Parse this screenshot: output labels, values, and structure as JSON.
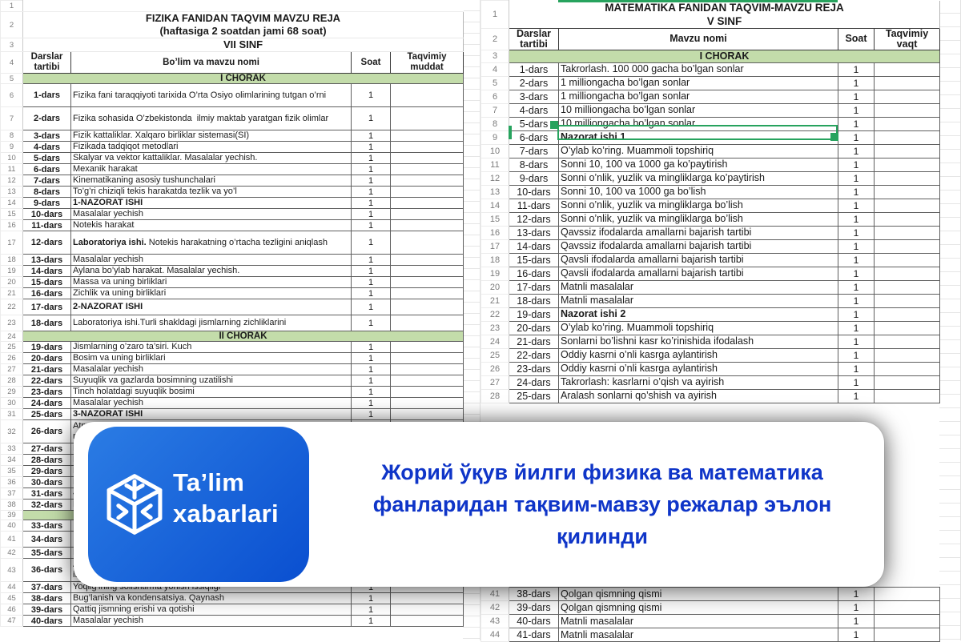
{
  "colors": {
    "section_green": "#c3dcaa",
    "selection_green": "#27a35e",
    "headline_blue": "#0f35c8",
    "logo_blue_from": "#2b7ce4",
    "logo_blue_to": "#0a4fd0"
  },
  "banner": {
    "headline": "Жорий ўқув йилги физика ва математика фанларидан тақвим-мавзу режалар эълон қилинди",
    "logo": {
      "line1": "Ta’lim",
      "line2": "xabarlari"
    }
  },
  "left_sheet": {
    "num1": "1",
    "num2": "2",
    "num3": "3",
    "num4": "4",
    "title_line1": "FIZIKA FANIDAN TAQVIM MAVZU REJA",
    "title_line2": "(haftasiga 2 soatdan jami 68 soat)",
    "subtitle": "VII SINF",
    "headers": [
      "Darslar tartibi",
      "Bo’lim va mavzu nomi",
      "Soat",
      "Taqvimiy muddat"
    ],
    "rows": [
      {
        "n": "5",
        "type": "section",
        "label": "I CHORAK"
      },
      {
        "n": "6",
        "dars": "1-dars",
        "mavzu": "Fizika fani taraqqiyoti tarixida O’rta Osiyo olimlarining tutgan o’rni",
        "soat": "1",
        "size": "l"
      },
      {
        "n": "7",
        "dars": "2-dars",
        "mavzu": "Fizika sohasida O’zbekistonda  ilmiy maktab yaratgan fizik olimlar",
        "soat": "1",
        "size": "l"
      },
      {
        "n": "8",
        "dars": "3-dars",
        "mavzu": "Fizik kattaliklar. Xalqaro birliklar sistemasi(SI)",
        "soat": "1"
      },
      {
        "n": "9",
        "dars": "4-dars",
        "mavzu": "Fizikada tadqiqot metodlari",
        "soat": "1"
      },
      {
        "n": "10",
        "dars": "5-dars",
        "mavzu": "Skalyar va vektor kattaliklar. Masalalar yechish.",
        "soat": "1"
      },
      {
        "n": "11",
        "dars": "6-dars",
        "mavzu": "Mexanik harakat",
        "soat": "1"
      },
      {
        "n": "12",
        "dars": "7-dars",
        "mavzu": "Kinematikaning asosiy tushunchalari",
        "soat": "1"
      },
      {
        "n": "13",
        "dars": "8-dars",
        "mavzu": "To’g’ri chiziqli tekis harakatda tezlik va yo’l",
        "soat": "1"
      },
      {
        "n": "14",
        "dars": "9-dars",
        "mavzu": "1-NAZORAT ISHI",
        "soat": "1",
        "bold": true
      },
      {
        "n": "15",
        "dars": "10-dars",
        "mavzu": "Masalalar yechish",
        "soat": "1"
      },
      {
        "n": "16",
        "dars": "11-dars",
        "mavzu": "Notekis harakat",
        "soat": "1"
      },
      {
        "n": "17",
        "dars": "12-dars",
        "parts": [
          {
            "t": "Laboratoriya ishi.",
            "b": true
          },
          {
            "t": " Notekis harakatning o’rtacha tezligini aniqlash"
          }
        ],
        "soat": "1",
        "size": "l"
      },
      {
        "n": "18",
        "dars": "13-dars",
        "mavzu": "Masalalar yechish",
        "soat": "1"
      },
      {
        "n": "19",
        "dars": "14-dars",
        "mavzu": "Aylana bo’ylab harakat. Masalalar yechish.",
        "soat": "1"
      },
      {
        "n": "20",
        "dars": "15-dars",
        "mavzu": "Massa va uning birliklari",
        "soat": "1"
      },
      {
        "n": "21",
        "dars": "16-dars",
        "mavzu": "Zichlik va uning birliklari",
        "soat": "1"
      },
      {
        "n": "22",
        "dars": "17-dars",
        "mavzu": "2-NAZORAT ISHI",
        "soat": "1",
        "bold": true,
        "size": "m"
      },
      {
        "n": "23",
        "dars": "18-dars",
        "mavzu": "Laboratoriya ishi.Turli shakldagi jismlarning zichliklarini",
        "soat": "1",
        "size": "m"
      },
      {
        "n": "24",
        "type": "section",
        "label": "II CHORAK"
      },
      {
        "n": "25",
        "dars": "19-dars",
        "mavzu": "Jismlarning o’zaro ta’siri. Kuch",
        "soat": "1"
      },
      {
        "n": "26",
        "dars": "20-dars",
        "mavzu": "Bosim va uning birliklari",
        "soat": "1"
      },
      {
        "n": "27",
        "dars": "21-dars",
        "mavzu": "Masalalar yechish",
        "soat": "1"
      },
      {
        "n": "28",
        "dars": "22-dars",
        "mavzu": "Suyuqlik va gazlarda bosimning uzatilishi",
        "soat": "1"
      },
      {
        "n": "29",
        "dars": "23-dars",
        "mavzu": "Tinch holatdagi suyuqlik bosimi",
        "soat": "1"
      },
      {
        "n": "30",
        "dars": "24-dars",
        "mavzu": "Masalalar yechish",
        "soat": "1"
      },
      {
        "n": "31",
        "dars": "25-dars",
        "mavzu": "3-NAZORAT ISHI",
        "soat": "1",
        "bold": true
      },
      {
        "n": "32",
        "dars": "26-dars",
        "parts": [
          {
            "t": "Atmosfera bosimi ("
          },
          {
            "t": "Loyiha ishi.",
            "b": true
          },
          {
            "t": " Atmosfera bosimining amalda\nna"
          }
        ],
        "soat": "",
        "size": "l"
      },
      {
        "n": "33",
        "dars": "27-dars",
        "mavzu": "M",
        "soat": ""
      },
      {
        "n": "34",
        "dars": "28-dars",
        "mavzu": "M",
        "soat": ""
      },
      {
        "n": "35",
        "dars": "29-dars",
        "mavzu": "M:",
        "soat": ""
      },
      {
        "n": "36",
        "dars": "30-dars",
        "mavzu": "M",
        "soat": ""
      },
      {
        "n": "37",
        "dars": "31-dars",
        "mavzu": "4-",
        "soat": ""
      },
      {
        "n": "38",
        "dars": "32-dars",
        "mavzu": "M",
        "soat": ""
      },
      {
        "n": "39",
        "type": "section",
        "label": ""
      },
      {
        "n": "40",
        "dars": "33-dars",
        "mavzu": "Ic",
        "soat": ""
      },
      {
        "n": "41",
        "dars": "34-dars",
        "mavzu": "Is:",
        "soat": "",
        "size": "m"
      },
      {
        "n": "42",
        "dars": "35-dars",
        "mavzu": "M",
        "soat": ""
      },
      {
        "n": "43",
        "dars": "36-dars",
        "mavzu": "Ar\nissiq",
        "soat": "",
        "size": "l"
      },
      {
        "n": "44",
        "dars": "37-dars",
        "mavzu": "Yoqilg’ining solishtirma yonish issiqligi",
        "soat": "1"
      },
      {
        "n": "45",
        "dars": "38-dars",
        "mavzu": "Bug’lanish va kondensatsiya. Qaynash",
        "soat": "1"
      },
      {
        "n": "46",
        "dars": "39-dars",
        "mavzu": "Qattiq jismning erishi va qotishi",
        "soat": "1"
      },
      {
        "n": "47",
        "dars": "40-dars",
        "mavzu": "Masalalar yechish",
        "soat": "1"
      }
    ]
  },
  "right_sheet": {
    "num1": "1",
    "num2": "2",
    "title_line1": "MATEMATIKA FANIDAN TAQVIM-MAVZU REJA",
    "title_line2": "V SINF",
    "headers": [
      "Darslar tartibi",
      "Mavzu nomi",
      "Soat",
      "Taqvimiy vaqt"
    ],
    "selected_cell_row": "7",
    "rows": [
      {
        "n": "3",
        "type": "section",
        "label": "I CHORAK"
      },
      {
        "n": "4",
        "dars": "1-dars",
        "mavzu": "Takrorlash. 100 000 gacha bo’lgan sonlar",
        "soat": "1"
      },
      {
        "n": "5",
        "dars": "2-dars",
        "mavzu": "1 milliongacha bo’lgan sonlar",
        "soat": "1"
      },
      {
        "n": "6",
        "dars": "3-dars",
        "mavzu": "1 milliongacha bo’lgan sonlar",
        "soat": "1"
      },
      {
        "n": "7",
        "dars": "4-dars",
        "mavzu": "10 milliongacha bo’lgan sonlar",
        "soat": "1"
      },
      {
        "n": "8",
        "dars": "5-dars",
        "mavzu": "10 milliongacha bo’lgan sonlar",
        "soat": "1"
      },
      {
        "n": "9",
        "dars": "6-dars",
        "mavzu": "Nazorat ishi 1",
        "soat": "1",
        "bold": true
      },
      {
        "n": "10",
        "dars": "7-dars",
        "mavzu": "O’ylab ko’ring. Muammoli topshiriq",
        "soat": "1"
      },
      {
        "n": "11",
        "dars": "8-dars",
        "mavzu": "Sonni 10, 100 va 1000 ga ko’paytirish",
        "soat": "1"
      },
      {
        "n": "12",
        "dars": "9-dars",
        "mavzu": "Sonni o’nlik, yuzlik va mingliklarga ko’paytirish",
        "soat": "1"
      },
      {
        "n": "13",
        "dars": "10-dars",
        "mavzu": "Sonni 10, 100 va 1000 ga bo’lish",
        "soat": "1"
      },
      {
        "n": "14",
        "dars": "11-dars",
        "mavzu": "Sonni o’nlik, yuzlik va mingliklarga bo’lish",
        "soat": "1"
      },
      {
        "n": "15",
        "dars": "12-dars",
        "mavzu": "Sonni o’nlik, yuzlik va mingliklarga bo’lish",
        "soat": "1"
      },
      {
        "n": "16",
        "dars": "13-dars",
        "mavzu": "Qavssiz ifodalarda amallarni bajarish tartibi",
        "soat": "1"
      },
      {
        "n": "17",
        "dars": "14-dars",
        "mavzu": "Qavssiz ifodalarda amallarni bajarish tartibi",
        "soat": "1"
      },
      {
        "n": "18",
        "dars": "15-dars",
        "mavzu": "Qavsli ifodalarda amallarni bajarish tartibi",
        "soat": "1"
      },
      {
        "n": "19",
        "dars": "16-dars",
        "mavzu": "Qavsli ifodalarda amallarni bajarish tartibi",
        "soat": "1"
      },
      {
        "n": "20",
        "dars": "17-dars",
        "mavzu": "Matnli masalalar",
        "soat": "1"
      },
      {
        "n": "21",
        "dars": "18-dars",
        "mavzu": "Matnli masalalar",
        "soat": "1"
      },
      {
        "n": "22",
        "dars": "19-dars",
        "mavzu": "Nazorat ishi 2",
        "soat": "1",
        "bold": true
      },
      {
        "n": "23",
        "dars": "20-dars",
        "mavzu": "O’ylab ko’ring. Muammoli topshiriq",
        "soat": "1"
      },
      {
        "n": "24",
        "dars": "21-dars",
        "mavzu": "Sonlarni bo’lishni kasr ko’rinishida ifodalash",
        "soat": "1"
      },
      {
        "n": "25",
        "dars": "22-dars",
        "mavzu": "Oddiy kasrni o’nli kasrga aylantirish",
        "soat": "1"
      },
      {
        "n": "26",
        "dars": "23-dars",
        "mavzu": "Oddiy kasrni o’nli kasrga aylantirish",
        "soat": "1"
      },
      {
        "n": "27",
        "dars": "24-dars",
        "mavzu": "Takrorlash: kasrlarni o’qish va ayirish",
        "soat": "1"
      },
      {
        "n": "28",
        "dars": "25-dars",
        "mavzu": "Aralash sonlarni qo’shish va ayirish",
        "soat": "1"
      }
    ],
    "bottom_rows": [
      {
        "n": "41",
        "dars": "38-dars",
        "mavzu": "Qolgan qismning qismi",
        "soat": "1"
      },
      {
        "n": "42",
        "dars": "39-dars",
        "mavzu": "Qolgan qismning qismi",
        "soat": "1"
      },
      {
        "n": "43",
        "dars": "40-dars",
        "mavzu": "Matnli masalalar",
        "soat": "1"
      },
      {
        "n": "44",
        "dars": "41-dars",
        "mavzu": "Matnli masalalar",
        "soat": "1"
      }
    ]
  }
}
